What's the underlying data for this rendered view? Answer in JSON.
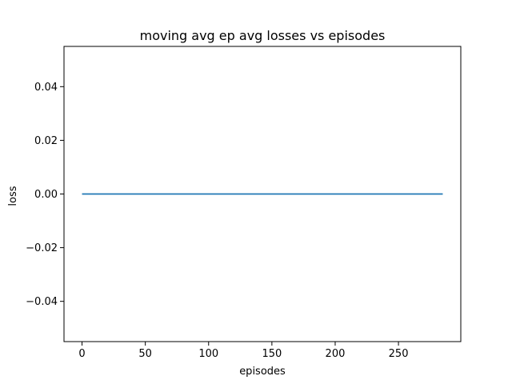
{
  "chart_data": {
    "type": "line",
    "title": "moving avg ep avg losses vs episodes",
    "xlabel": "episodes",
    "ylabel": "loss",
    "xlim": [
      -14.25,
      299.25
    ],
    "ylim": [
      -0.055,
      0.055
    ],
    "xticks": [
      0,
      50,
      100,
      150,
      200,
      250
    ],
    "xtick_labels": [
      "0",
      "50",
      "100",
      "150",
      "200",
      "250"
    ],
    "yticks": [
      -0.04,
      -0.02,
      0.0,
      0.02,
      0.04
    ],
    "ytick_labels": [
      "−0.04",
      "−0.02",
      "0.00",
      "0.02",
      "0.04"
    ],
    "grid": false,
    "series": [
      {
        "color": "#1f77b4",
        "x": [
          0,
          285
        ],
        "y": [
          0.0,
          0.0
        ]
      }
    ]
  }
}
